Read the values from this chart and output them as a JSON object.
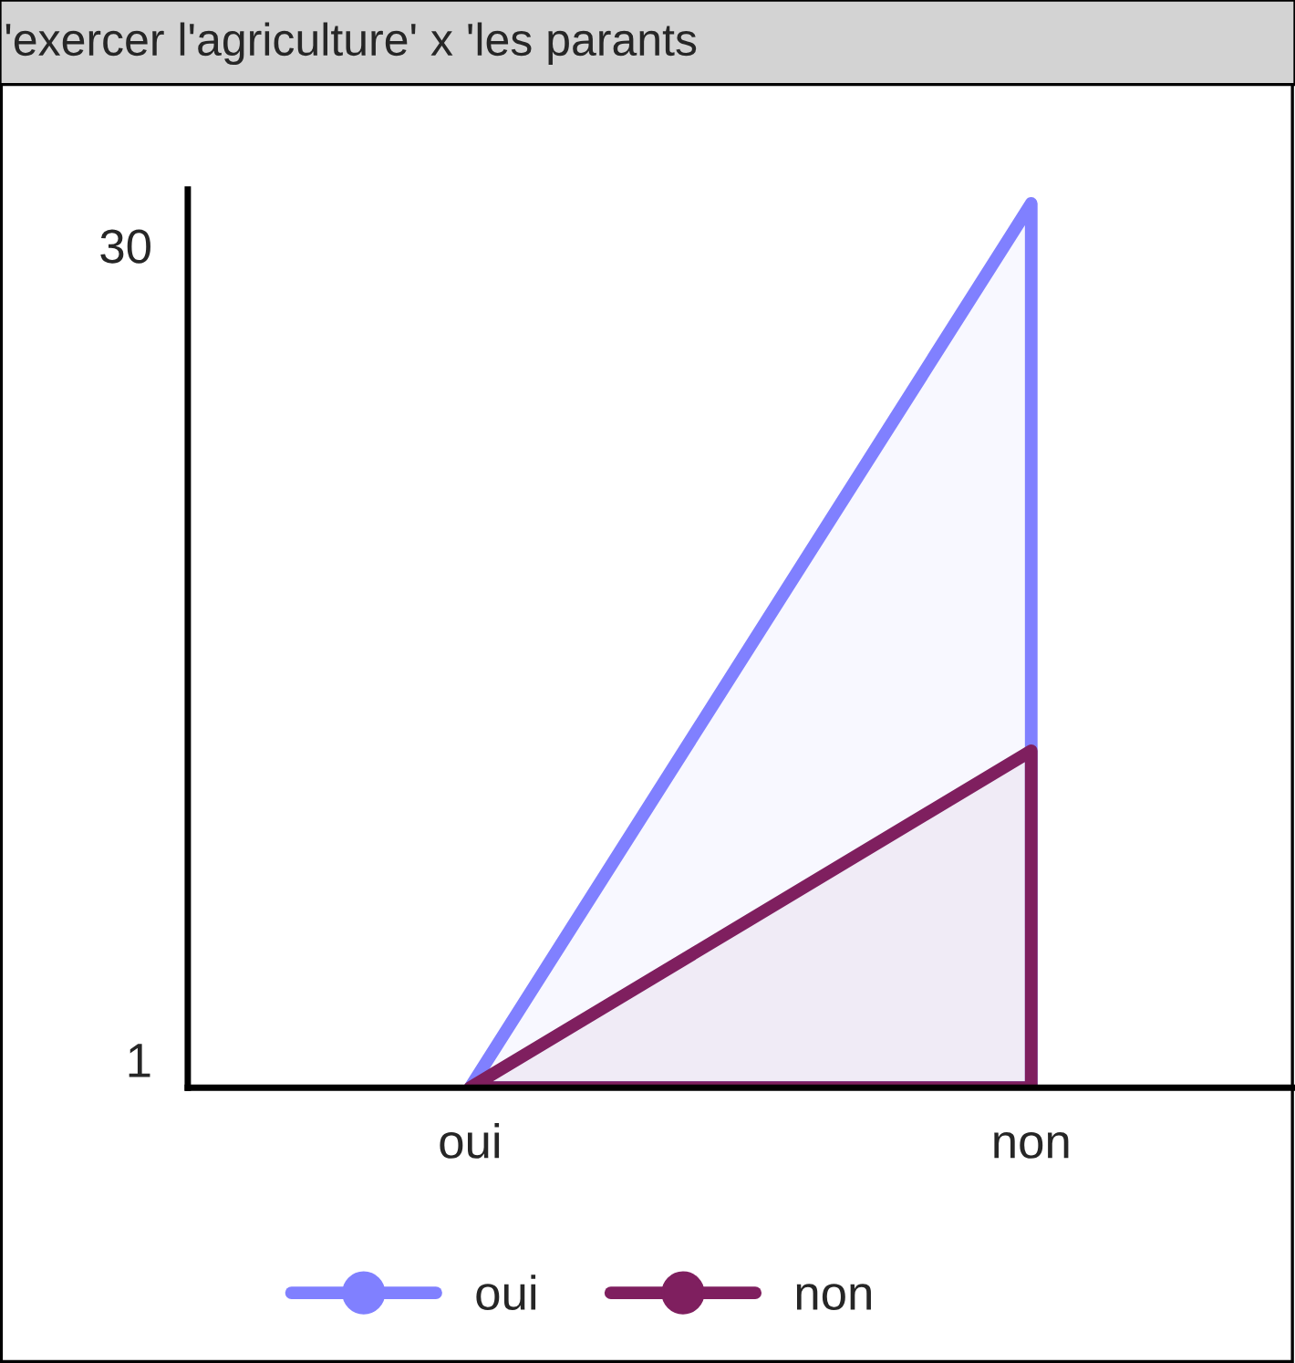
{
  "chart_data": {
    "type": "area",
    "title": "'exercer l'agriculture' x 'les parants",
    "categories": [
      "oui",
      "non"
    ],
    "series": [
      {
        "name": "oui",
        "color": "#8080ff",
        "values": [
          0,
          31.5
        ]
      },
      {
        "name": "non",
        "color": "#7f1f5f",
        "values": [
          0,
          12
        ]
      }
    ],
    "ylim": [
      0,
      32
    ],
    "yticks": [
      1,
      30
    ],
    "grid": false,
    "legend": "bottom"
  }
}
